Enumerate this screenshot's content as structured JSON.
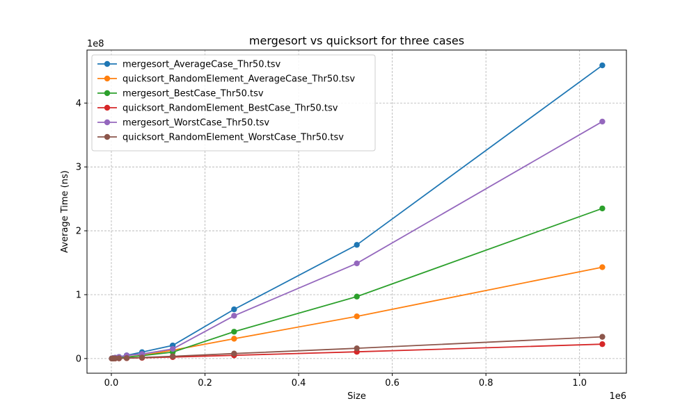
{
  "chart_data": {
    "type": "line",
    "title": "mergesort vs quicksort for three cases",
    "xlabel": "Size",
    "ylabel": "Average Time (ns)",
    "x_offset_label": "1e6",
    "y_offset_label": "1e8",
    "x_ticks": [
      0,
      0.2,
      0.4,
      0.6,
      0.8,
      1.0
    ],
    "y_ticks": [
      0,
      1,
      2,
      3,
      4
    ],
    "xlim": [
      -52000,
      1100000
    ],
    "ylim": [
      -23000000,
      483000000
    ],
    "grid": true,
    "legend_position": "upper-left",
    "x": [
      1024,
      2048,
      4096,
      8192,
      16384,
      32768,
      65536,
      131072,
      262144,
      524288,
      1048576
    ],
    "series": [
      {
        "name": "mergesort_AverageCase_Thr50.tsv",
        "color": "#1f77b4",
        "values": [
          180000,
          350000,
          700000,
          1300000,
          2500000,
          5000000,
          10000000,
          20500000,
          77000000,
          178000000,
          459000000
        ]
      },
      {
        "name": "quicksort_RandomElement_AverageCase_Thr50.tsv",
        "color": "#ff7f0e",
        "values": [
          60000,
          120000,
          250000,
          500000,
          1100000,
          2300000,
          4800000,
          13000000,
          31000000,
          66000000,
          143000000
        ]
      },
      {
        "name": "mergesort_BestCase_Thr50.tsv",
        "color": "#2ca02c",
        "values": [
          70000,
          140000,
          280000,
          560000,
          1100000,
          2200000,
          4500000,
          10000000,
          42000000,
          97000000,
          235000000
        ]
      },
      {
        "name": "quicksort_RandomElement_BestCase_Thr50.tsv",
        "color": "#d62728",
        "values": [
          15000,
          30000,
          60000,
          130000,
          270000,
          550000,
          1100000,
          2300000,
          5000000,
          10500000,
          22500000
        ]
      },
      {
        "name": "mergesort_WorstCase_Thr50.tsv",
        "color": "#9467bd",
        "values": [
          150000,
          300000,
          600000,
          1200000,
          2400000,
          4800000,
          7000000,
          15000000,
          67000000,
          149000000,
          371000000
        ]
      },
      {
        "name": "quicksort_RandomElement_WorstCase_Thr50.tsv",
        "color": "#8c564b",
        "values": [
          20000,
          40000,
          80000,
          170000,
          350000,
          700000,
          1600000,
          3500000,
          7800000,
          16000000,
          34000000
        ]
      }
    ]
  }
}
